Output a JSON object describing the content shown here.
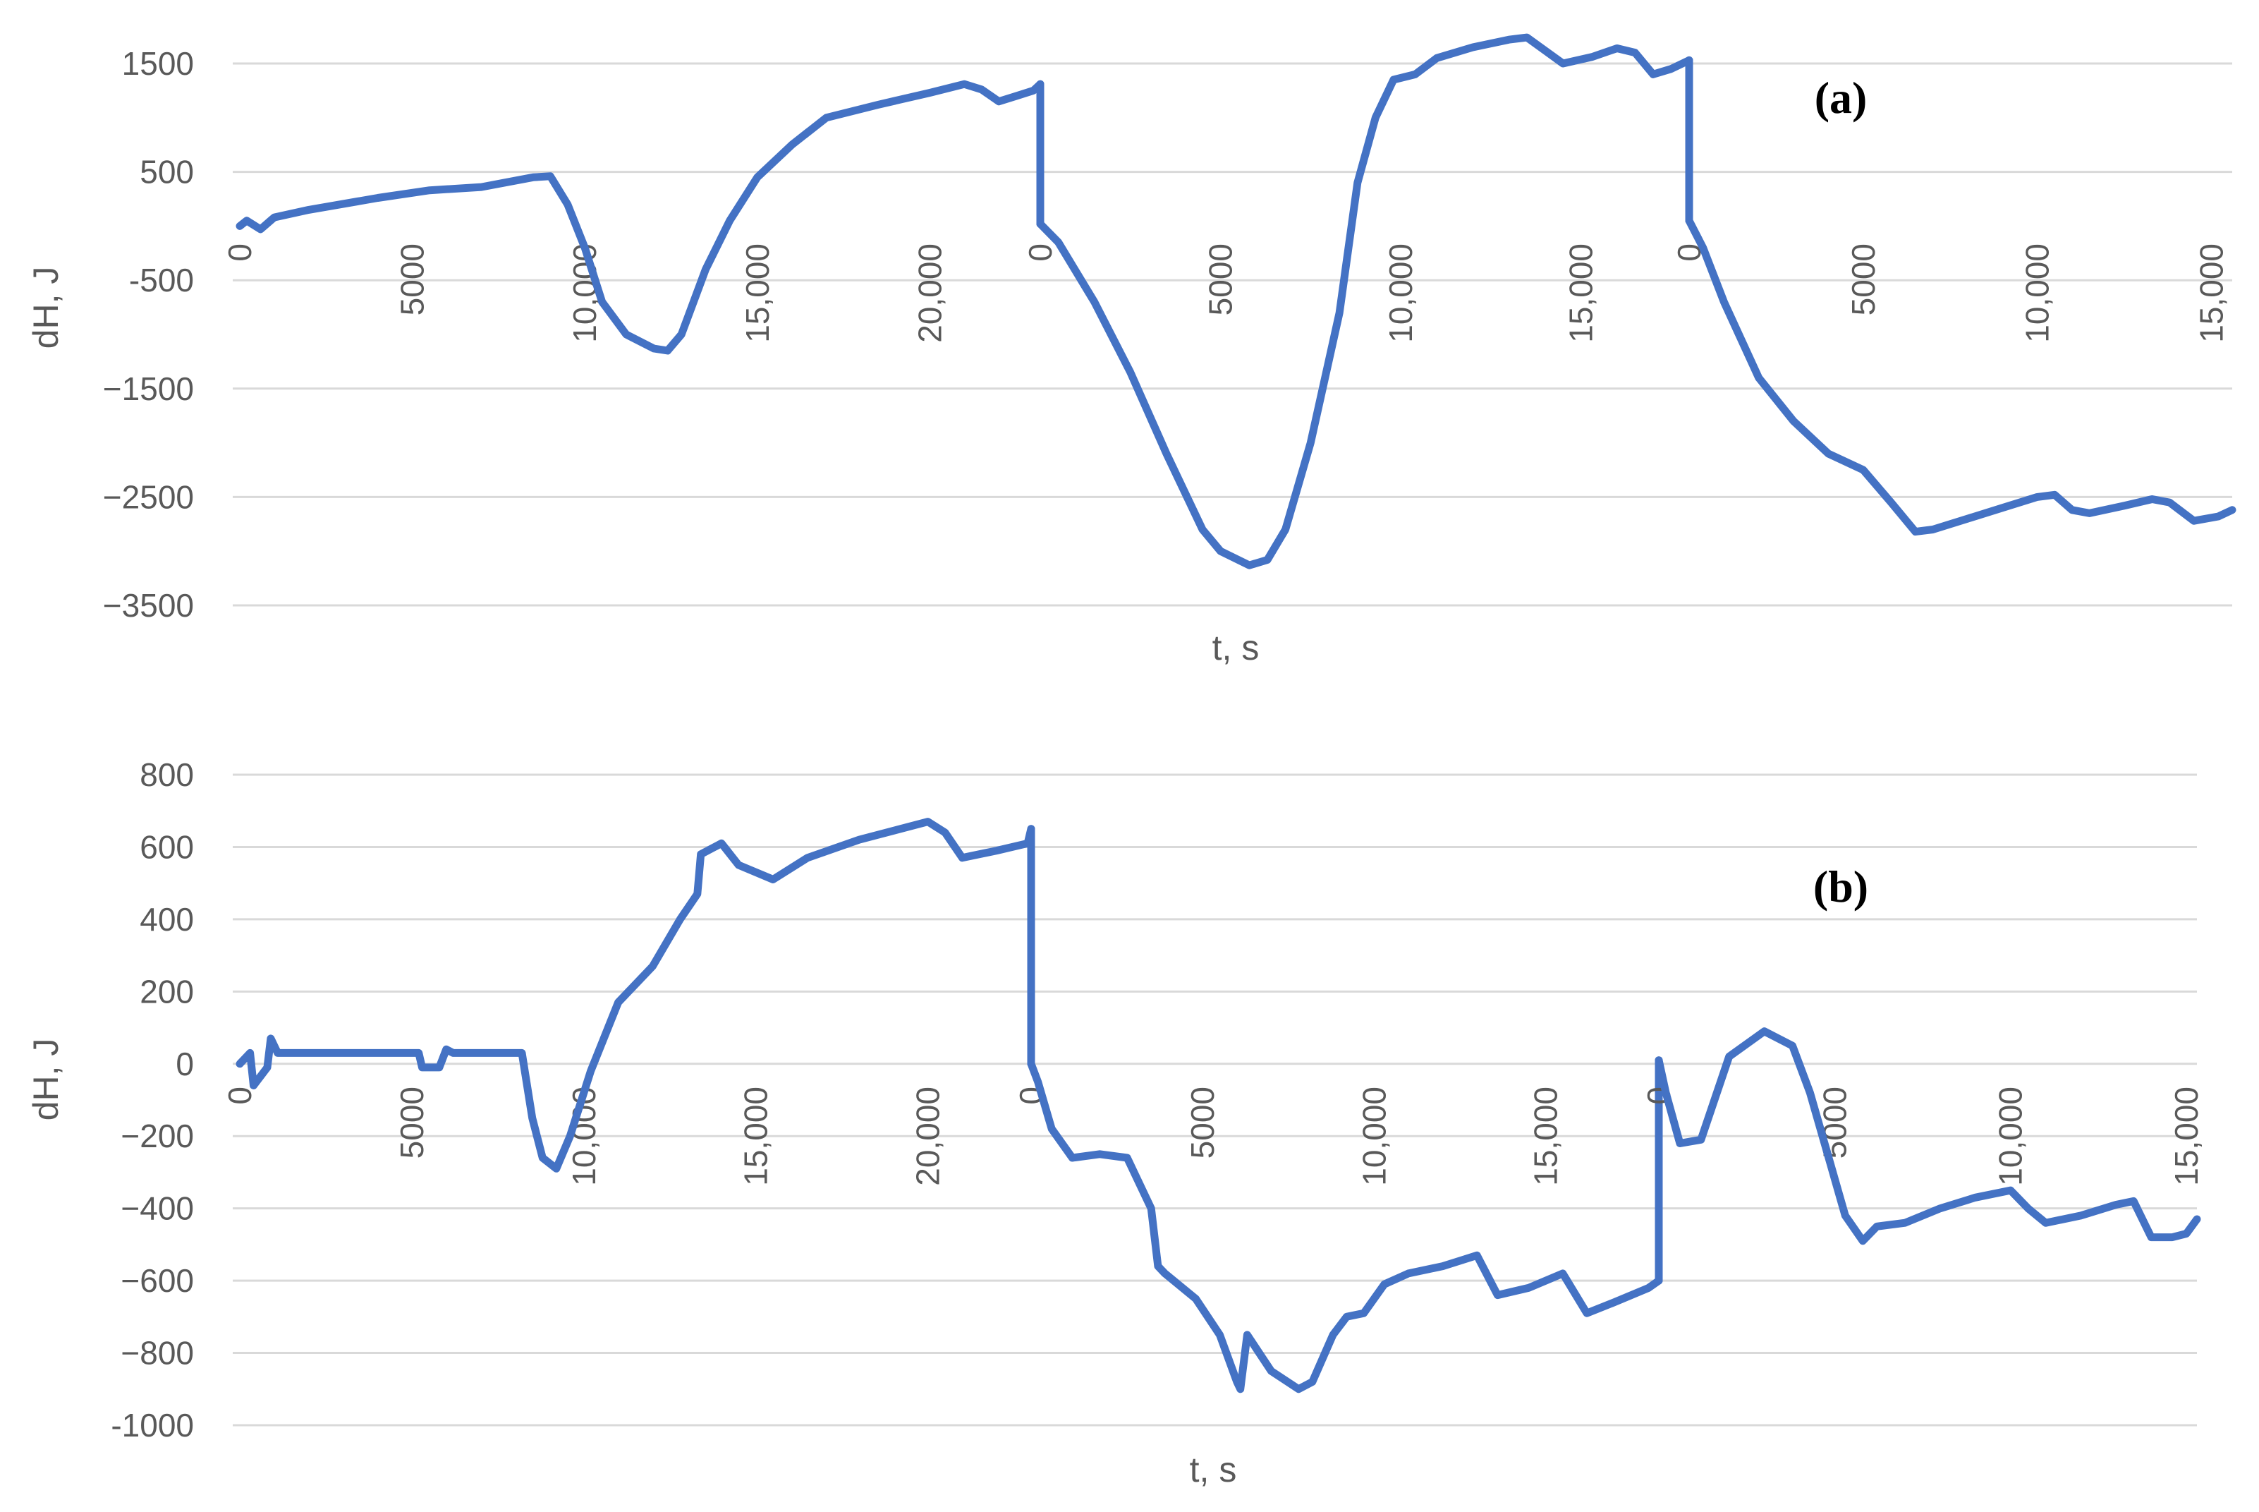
{
  "chart_data": [
    {
      "type": "line",
      "panel_label": "(a)",
      "xlabel": "t, s",
      "ylabel": "dH, J",
      "ylim": [
        -3500,
        1500
      ],
      "yticks": [
        1500,
        500,
        -500,
        -1500,
        -2500,
        -3500
      ],
      "ytick_labels": [
        "1500",
        "500",
        "-500",
        "−1500",
        "−2500",
        "−3500"
      ],
      "grid": true,
      "segments": [
        {
          "xticks": [
            0,
            5000,
            10000,
            15000,
            20000
          ],
          "xtick_labels": [
            "0",
            "5000",
            "10,000",
            "15,000",
            "20,000"
          ],
          "xmax": 23200,
          "points": [
            [
              0,
              0
            ],
            [
              200,
              50
            ],
            [
              600,
              -30
            ],
            [
              1000,
              80
            ],
            [
              2000,
              150
            ],
            [
              4000,
              260
            ],
            [
              5500,
              330
            ],
            [
              7000,
              360
            ],
            [
              8500,
              450
            ],
            [
              9000,
              460
            ],
            [
              9500,
              200
            ],
            [
              10000,
              -200
            ],
            [
              10500,
              -700
            ],
            [
              11200,
              -1000
            ],
            [
              12000,
              -1130
            ],
            [
              12400,
              -1150
            ],
            [
              12800,
              -1000
            ],
            [
              13500,
              -400
            ],
            [
              14200,
              50
            ],
            [
              15000,
              450
            ],
            [
              16000,
              750
            ],
            [
              17000,
              1000
            ],
            [
              18500,
              1120
            ],
            [
              20000,
              1230
            ],
            [
              21000,
              1310
            ],
            [
              21500,
              1260
            ],
            [
              22000,
              1150
            ],
            [
              22500,
              1200
            ],
            [
              23000,
              1250
            ],
            [
              23200,
              1310
            ]
          ]
        },
        {
          "xticks": [
            0,
            5000,
            10000,
            15000
          ],
          "xtick_labels": [
            "0",
            "5000",
            "10,000",
            "15,000"
          ],
          "xmax": 18000,
          "points": [
            [
              0,
              20
            ],
            [
              500,
              -150
            ],
            [
              1500,
              -700
            ],
            [
              2500,
              -1350
            ],
            [
              3500,
              -2100
            ],
            [
              4500,
              -2800
            ],
            [
              5000,
              -3000
            ],
            [
              5800,
              -3130
            ],
            [
              6300,
              -3080
            ],
            [
              6800,
              -2800
            ],
            [
              7500,
              -2000
            ],
            [
              8300,
              -800
            ],
            [
              8800,
              400
            ],
            [
              9300,
              1000
            ],
            [
              9800,
              1350
            ],
            [
              10400,
              1400
            ],
            [
              11000,
              1550
            ],
            [
              12000,
              1650
            ],
            [
              13000,
              1720
            ],
            [
              13500,
              1740
            ],
            [
              14000,
              1620
            ],
            [
              14500,
              1500
            ],
            [
              15300,
              1560
            ],
            [
              16000,
              1640
            ],
            [
              16500,
              1600
            ],
            [
              17000,
              1400
            ],
            [
              17500,
              1450
            ],
            [
              18000,
              1530
            ]
          ]
        },
        {
          "xticks": [
            0,
            5000,
            10000,
            15000
          ],
          "xtick_labels": [
            "0",
            "5000",
            "10,000",
            "15,000"
          ],
          "xmax": 15600,
          "points": [
            [
              0,
              50
            ],
            [
              400,
              -200
            ],
            [
              1000,
              -700
            ],
            [
              2000,
              -1400
            ],
            [
              3000,
              -1800
            ],
            [
              4000,
              -2100
            ],
            [
              5000,
              -2250
            ],
            [
              5800,
              -2550
            ],
            [
              6500,
              -2820
            ],
            [
              7000,
              -2800
            ],
            [
              8000,
              -2700
            ],
            [
              9000,
              -2600
            ],
            [
              10000,
              -2500
            ],
            [
              10500,
              -2480
            ],
            [
              11000,
              -2620
            ],
            [
              11500,
              -2650
            ],
            [
              12500,
              -2580
            ],
            [
              13300,
              -2520
            ],
            [
              13800,
              -2550
            ],
            [
              14500,
              -2720
            ],
            [
              15200,
              -2680
            ],
            [
              15600,
              -2620
            ]
          ]
        }
      ]
    },
    {
      "type": "line",
      "panel_label": "(b)",
      "xlabel": "t, s",
      "ylabel": "dH, J",
      "ylim": [
        -1000,
        800
      ],
      "yticks": [
        800,
        600,
        400,
        200,
        0,
        -200,
        -400,
        -600,
        -800,
        -1000
      ],
      "ytick_labels": [
        "800",
        "600",
        "400",
        "200",
        "0",
        "−200",
        "−400",
        "−600",
        "−800",
        "-1000"
      ],
      "grid": true,
      "segments": [
        {
          "xticks": [
            0,
            5000,
            10000,
            15000,
            20000
          ],
          "xtick_labels": [
            "0",
            "5000",
            "10,000",
            "15,000",
            "20,000"
          ],
          "xmax": 23000,
          "points": [
            [
              0,
              0
            ],
            [
              300,
              30
            ],
            [
              400,
              -60
            ],
            [
              800,
              -10
            ],
            [
              900,
              70
            ],
            [
              1100,
              30
            ],
            [
              2500,
              30
            ],
            [
              5200,
              30
            ],
            [
              5300,
              -10
            ],
            [
              5800,
              -10
            ],
            [
              6000,
              40
            ],
            [
              6200,
              30
            ],
            [
              8200,
              30
            ],
            [
              8500,
              -150
            ],
            [
              8800,
              -260
            ],
            [
              9200,
              -290
            ],
            [
              9600,
              -200
            ],
            [
              10200,
              -20
            ],
            [
              11000,
              170
            ],
            [
              12000,
              270
            ],
            [
              12800,
              400
            ],
            [
              13300,
              470
            ],
            [
              13400,
              580
            ],
            [
              14000,
              610
            ],
            [
              14500,
              550
            ],
            [
              15500,
              510
            ],
            [
              16500,
              570
            ],
            [
              18000,
              620
            ],
            [
              20000,
              670
            ],
            [
              20500,
              640
            ],
            [
              21000,
              570
            ],
            [
              22000,
              590
            ],
            [
              22900,
              610
            ],
            [
              23000,
              650
            ]
          ]
        },
        {
          "xticks": [
            0,
            5000,
            10000,
            15000
          ],
          "xtick_labels": [
            "0",
            "5000",
            "10,000",
            "15,000"
          ],
          "xmax": 18300,
          "points": [
            [
              0,
              0
            ],
            [
              200,
              -50
            ],
            [
              600,
              -180
            ],
            [
              1200,
              -260
            ],
            [
              2000,
              -250
            ],
            [
              2800,
              -260
            ],
            [
              3500,
              -400
            ],
            [
              3700,
              -560
            ],
            [
              3900,
              -580
            ],
            [
              4800,
              -650
            ],
            [
              5500,
              -750
            ],
            [
              6000,
              -880
            ],
            [
              6100,
              -900
            ],
            [
              6300,
              -750
            ],
            [
              7000,
              -850
            ],
            [
              7800,
              -900
            ],
            [
              8200,
              -880
            ],
            [
              8800,
              -750
            ],
            [
              9200,
              -700
            ],
            [
              9700,
              -690
            ],
            [
              10300,
              -610
            ],
            [
              11000,
              -580
            ],
            [
              12000,
              -560
            ],
            [
              13000,
              -530
            ],
            [
              13600,
              -640
            ],
            [
              14500,
              -620
            ],
            [
              15500,
              -580
            ],
            [
              16200,
              -690
            ],
            [
              17000,
              -660
            ],
            [
              18000,
              -620
            ],
            [
              18300,
              -600
            ]
          ]
        },
        {
          "xticks": [
            0,
            5000,
            10000,
            15000
          ],
          "xtick_labels": [
            "0",
            "5000",
            "10,000",
            "15,000"
          ],
          "xmax": 15300,
          "points": [
            [
              0,
              10
            ],
            [
              200,
              -80
            ],
            [
              600,
              -220
            ],
            [
              1200,
              -210
            ],
            [
              2000,
              20
            ],
            [
              3000,
              90
            ],
            [
              3800,
              50
            ],
            [
              4300,
              -80
            ],
            [
              4800,
              -250
            ],
            [
              5300,
              -420
            ],
            [
              5800,
              -490
            ],
            [
              6200,
              -450
            ],
            [
              7000,
              -440
            ],
            [
              8000,
              -400
            ],
            [
              9000,
              -370
            ],
            [
              10000,
              -350
            ],
            [
              10500,
              -400
            ],
            [
              11000,
              -440
            ],
            [
              12000,
              -420
            ],
            [
              13000,
              -390
            ],
            [
              13500,
              -380
            ],
            [
              14000,
              -480
            ],
            [
              14600,
              -480
            ],
            [
              15000,
              -470
            ],
            [
              15300,
              -430
            ]
          ]
        }
      ]
    }
  ]
}
